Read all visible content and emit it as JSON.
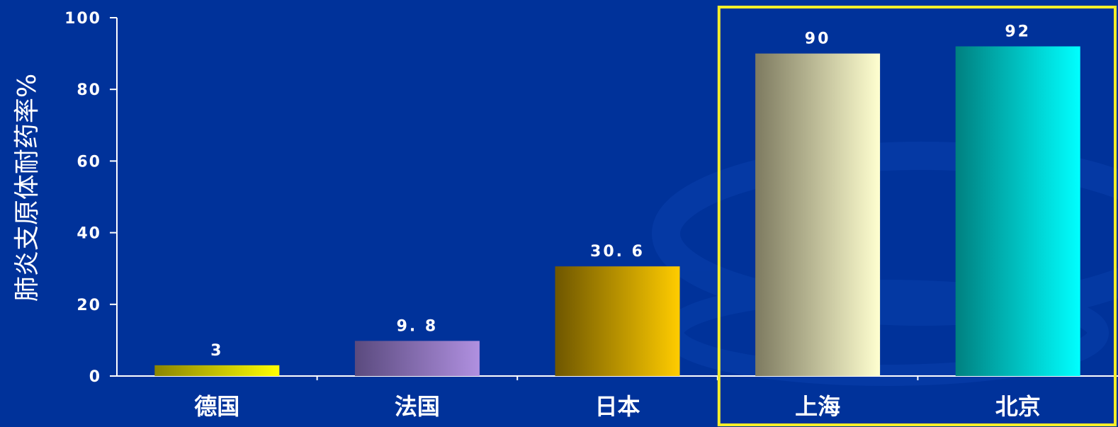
{
  "chart_data": {
    "type": "bar",
    "categories": [
      "德国",
      "法国",
      "日本",
      "上海",
      "北京"
    ],
    "values": [
      3,
      9.8,
      30.6,
      90,
      92
    ],
    "value_labels": [
      "3",
      "9. 8",
      "30. 6",
      "90",
      "92"
    ],
    "ylabel": "肺炎支原体耐药率%",
    "xlabel": "",
    "ylim": [
      0,
      100
    ],
    "yticks": [
      "0",
      "20",
      "40",
      "60",
      "80",
      "100"
    ],
    "grid": false,
    "highlight": [
      "上海",
      "北京"
    ],
    "colors": {
      "background": "#00329a",
      "axis": "#ffffff",
      "highlight_box": "#f5ee2a",
      "bars": [
        [
          "#8a8400",
          "#ffff00"
        ],
        [
          "#5a4a7e",
          "#b090e0"
        ],
        [
          "#6e5600",
          "#ffcc00"
        ],
        [
          "#7d7a60",
          "#ffffd0"
        ],
        [
          "#008080",
          "#00ffff"
        ]
      ]
    }
  }
}
